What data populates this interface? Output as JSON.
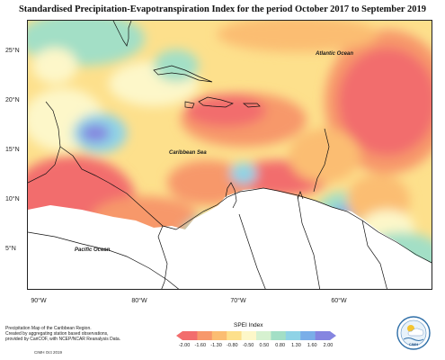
{
  "title": "Standardised Precipitation-Evapotranspiration Index for the period October 2017 to September 2019",
  "lat_ticks": [
    "25°N",
    "20°N",
    "15°N",
    "10°N",
    "5°N"
  ],
  "lon_ticks": [
    "90°W",
    "80°W",
    "70°W",
    "60°W"
  ],
  "labels": {
    "atlantic": "Atlantic Ocean",
    "caribbean": "Caribbean Sea",
    "pacific": "Pacific Ocean"
  },
  "caption": {
    "line1": "Precipitation Map of the Caribbean Region.",
    "line2": "Created by aggregating station based observations,",
    "line3": "provided by CariCOF, with NCEP/NCAR Reanalysis Data.",
    "credit": "CIMH Oct 2019"
  },
  "legend": {
    "title": "SPEI Index",
    "values": [
      "-2.00",
      "-1.60",
      "-1.30",
      "-0.80",
      "-0.50",
      "0.50",
      "0.80",
      "1.30",
      "1.60",
      "2.00"
    ],
    "colors": [
      "#f26d6d",
      "#f7986b",
      "#fbbd72",
      "#fde08c",
      "#fdf7c9",
      "#d6f1d0",
      "#a3dfc6",
      "#8fd3e6",
      "#7aaee8",
      "#8585e0"
    ]
  },
  "logo_text": "CIMH"
}
